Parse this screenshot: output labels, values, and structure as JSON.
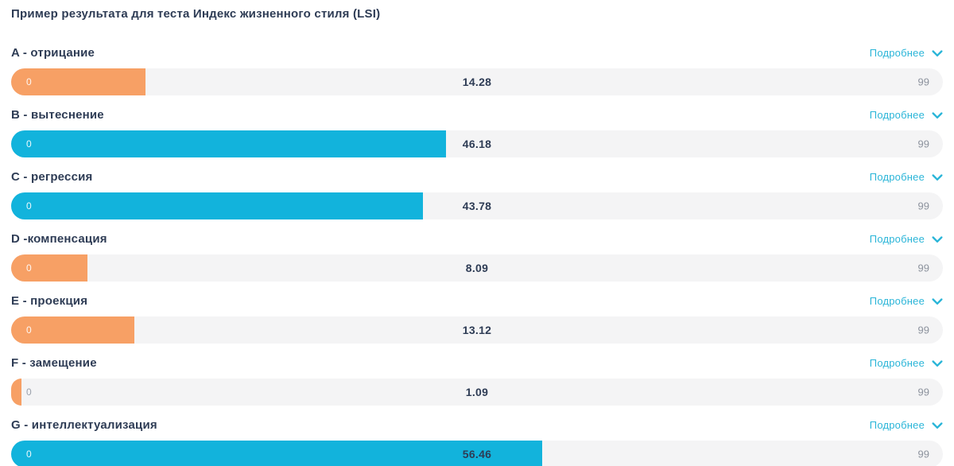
{
  "title": "Пример результата для теста Индекс жизненного стиля (LSI)",
  "details_label": "Подробнее",
  "scale": {
    "min": "0",
    "max": "99",
    "max_value": 99
  },
  "colors": {
    "orange": "#F7A065",
    "cyan": "#12B3DC",
    "track": "#F4F4F5",
    "accent": "#2AB5D8",
    "text_dark": "#2E3C55",
    "text_gray": "#8C929D"
  },
  "rows": [
    {
      "label": "A - отрицание",
      "value": 14.28,
      "value_label": "14.28",
      "color": "orange"
    },
    {
      "label": "B - вытеснение",
      "value": 46.18,
      "value_label": "46.18",
      "color": "cyan"
    },
    {
      "label": "C - регрессия",
      "value": 43.78,
      "value_label": "43.78",
      "color": "cyan"
    },
    {
      "label": "D -компенсация",
      "value": 8.09,
      "value_label": "8.09",
      "color": "orange"
    },
    {
      "label": "E - проекция",
      "value": 13.12,
      "value_label": "13.12",
      "color": "orange"
    },
    {
      "label": "F - замещение",
      "value": 1.09,
      "value_label": "1.09",
      "color": "orange"
    },
    {
      "label": "G - интеллектуализация",
      "value": 56.46,
      "value_label": "56.46",
      "color": "cyan"
    }
  ],
  "chart_data": {
    "type": "bar",
    "orientation": "horizontal",
    "title": "Пример результата для теста Индекс жизненного стиля (LSI)",
    "categories": [
      "A - отрицание",
      "B - вытеснение",
      "C - регрессия",
      "D -компенсация",
      "E - проекция",
      "F - замещение",
      "G - интеллектуализация"
    ],
    "values": [
      14.28,
      46.18,
      43.78,
      8.09,
      13.12,
      1.09,
      56.46
    ],
    "xlim": [
      0,
      99
    ],
    "bar_colors": [
      "#F7A065",
      "#12B3DC",
      "#12B3DC",
      "#F7A065",
      "#F7A065",
      "#F7A065",
      "#12B3DC"
    ],
    "grid": false,
    "value_labels_shown": true,
    "legend": null
  }
}
